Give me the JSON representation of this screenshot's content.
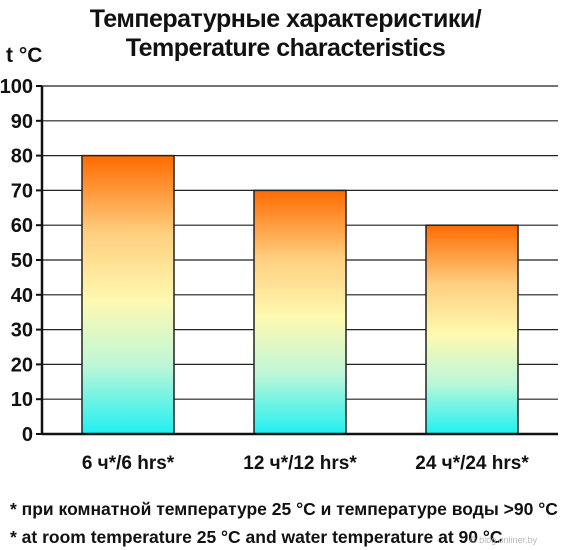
{
  "chart_data": {
    "type": "bar",
    "title_ru": "Температурные характеристики/",
    "title_en": "Temperature characteristics",
    "ylabel": "t °C",
    "categories": [
      "6 ч*/6 hrs*",
      "12 ч*/12 hrs*",
      "24 ч*/24 hrs*"
    ],
    "values": [
      80,
      70,
      60
    ],
    "ylim": [
      0,
      100
    ],
    "yticks": [
      0,
      10,
      20,
      30,
      40,
      50,
      60,
      70,
      80,
      90,
      100
    ],
    "grid": true,
    "bar_gradient": [
      "#ff6a00",
      "#ffcf80",
      "#fff9b0",
      "#bff7d8",
      "#20f0f0"
    ]
  },
  "notes": {
    "ru": "* при комнатной температуре 25 °C и температуре воды >90 °C",
    "en": "* at room temperature 25 °C and water temperature at 90 °C"
  },
  "watermark": "© blog.onliner.by"
}
